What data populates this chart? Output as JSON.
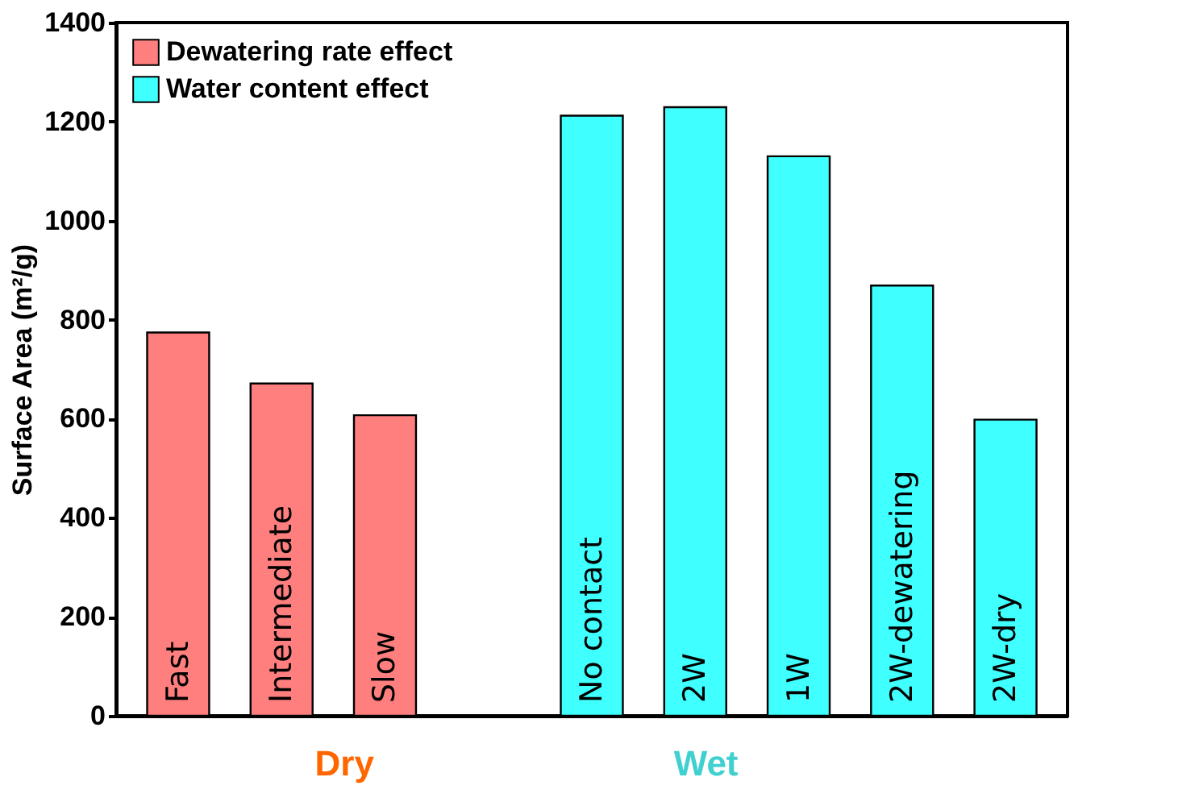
{
  "chart_data": {
    "type": "bar",
    "ylabel": "Surface Area (m²/g)",
    "categories": [
      "Fast",
      "Intermediate",
      "Slow",
      null,
      "No contact",
      "2W",
      "1W",
      "2W-dewatering",
      "2W-dry"
    ],
    "series": [
      {
        "name": "Dewatering rate effect",
        "color": "#ff7f7f",
        "values": [
          774,
          671,
          607,
          null,
          null,
          null,
          null,
          null,
          null
        ]
      },
      {
        "name": "Water content effect",
        "color": "#40ffff",
        "values": [
          null,
          null,
          null,
          null,
          1212,
          1229,
          1130,
          869,
          598
        ]
      }
    ],
    "ylim": [
      0,
      1400
    ],
    "yticks": [
      0,
      200,
      400,
      600,
      800,
      1000,
      1200,
      1400
    ],
    "annotations": [
      "Dry",
      "Wet"
    ],
    "grid": false,
    "legend": "top left"
  }
}
